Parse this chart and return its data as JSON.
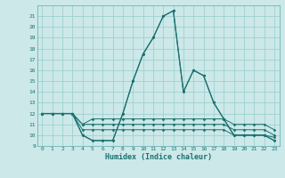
{
  "title": "",
  "xlabel": "Humidex (Indice chaleur)",
  "bg_color": "#cce8e8",
  "grid_color": "#99cccc",
  "line_color": "#1a7070",
  "xlim": [
    -0.5,
    23.5
  ],
  "ylim": [
    9,
    22
  ],
  "xticks": [
    0,
    1,
    2,
    3,
    4,
    5,
    6,
    7,
    8,
    9,
    10,
    11,
    12,
    13,
    14,
    15,
    16,
    17,
    18,
    19,
    20,
    21,
    22,
    23
  ],
  "yticks": [
    9,
    10,
    11,
    12,
    13,
    14,
    15,
    16,
    17,
    18,
    19,
    20,
    21
  ],
  "series": [
    [
      12,
      12,
      12,
      12,
      10,
      9.5,
      9.5,
      9.5,
      12,
      15,
      17.5,
      19,
      21,
      21.5,
      14,
      16,
      15.5,
      13,
      11.5,
      10,
      10,
      10,
      10,
      9.5
    ],
    [
      12,
      12,
      12,
      12,
      11,
      11.5,
      11.5,
      11.5,
      11.5,
      11.5,
      11.5,
      11.5,
      11.5,
      11.5,
      11.5,
      11.5,
      11.5,
      11.5,
      11.5,
      11,
      11,
      11,
      11,
      10.5
    ],
    [
      12,
      12,
      12,
      12,
      11,
      11,
      11,
      11,
      11,
      11,
      11,
      11,
      11,
      11,
      11,
      11,
      11,
      11,
      11,
      10.5,
      10.5,
      10.5,
      10.5,
      10
    ],
    [
      12,
      12,
      12,
      12,
      10.5,
      10.5,
      10.5,
      10.5,
      10.5,
      10.5,
      10.5,
      10.5,
      10.5,
      10.5,
      10.5,
      10.5,
      10.5,
      10.5,
      10.5,
      10,
      10,
      10,
      10,
      9.8
    ]
  ]
}
